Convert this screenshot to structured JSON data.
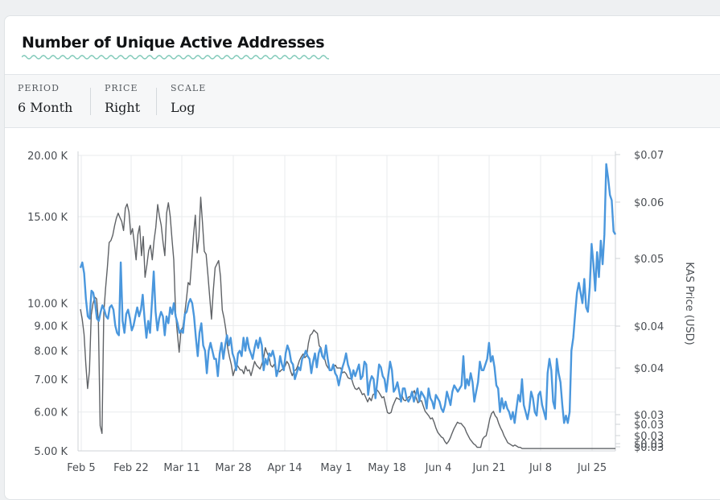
{
  "card": {
    "title": "Number of Unique Active Addresses"
  },
  "controls": [
    {
      "label": "PERIOD",
      "value": "6 Month"
    },
    {
      "label": "PRICE",
      "value": "Right"
    },
    {
      "label": "SCALE",
      "value": "Log"
    }
  ],
  "colors": {
    "addresses": "#4a97dd",
    "price": "#5f6266",
    "grid": "#e9ebed"
  },
  "chart_data": {
    "type": "line",
    "x_ticks": [
      "Feb 5",
      "Feb 22",
      "Mar 11",
      "Mar 28",
      "Apr 14",
      "May 1",
      "May 18",
      "Jun 4",
      "Jun 21",
      "Jul 8",
      "Jul 25"
    ],
    "y_left": {
      "scale": "log",
      "ticks": [
        5000,
        6000,
        7000,
        8000,
        9000,
        10000,
        15000,
        20000
      ],
      "tick_labels": [
        "5.00 K",
        "6.00 K",
        "7.00 K",
        "8.00 K",
        "9.00 K",
        "10.00 K",
        "15.00 K",
        "20.00 K"
      ],
      "ylim": [
        5000,
        20000
      ]
    },
    "y_right": {
      "label": "KAS Price (USD)",
      "tick_labels": [
        "$0.07",
        "$0.06",
        "$0.05",
        "$0.04",
        "$0.04",
        "$0.03",
        "$0.03",
        "$0.03",
        "$0.03",
        "$0.03"
      ]
    },
    "series": [
      {
        "key": "addresses",
        "axis": "left",
        "values": [
          11800,
          12100,
          11500,
          10200,
          9400,
          9300,
          10600,
          10500,
          10000,
          9300,
          9200,
          9600,
          9900,
          9700,
          9400,
          9300,
          9800,
          9900,
          9700,
          9000,
          8700,
          8600,
          12100,
          9200,
          8700,
          9500,
          9700,
          9300,
          8800,
          9000,
          9400,
          9800,
          9400,
          9700,
          10400,
          9300,
          8500,
          9200,
          8700,
          10000,
          11600,
          9600,
          8800,
          9300,
          9600,
          9400,
          8600,
          9400,
          9100,
          9800,
          9500,
          10000,
          9400,
          9100,
          8700,
          8800,
          8700,
          9500,
          9600,
          10000,
          10200,
          10000,
          9400,
          8500,
          7800,
          8700,
          9100,
          8200,
          8000,
          7200,
          8000,
          8300,
          8000,
          7700,
          7700,
          7100,
          7900,
          8300,
          7700,
          8200,
          8600,
          8200,
          8500,
          7900,
          7700,
          7300,
          7900,
          8000,
          7800,
          8500,
          8000,
          8500,
          8100,
          7900,
          7700,
          8100,
          8400,
          8100,
          8500,
          8200,
          7300,
          7700,
          7500,
          7900,
          7800,
          8000,
          7700,
          7100,
          7300,
          7800,
          7500,
          7300,
          7900,
          8200,
          8000,
          7600,
          7500,
          7000,
          7200,
          7400,
          7300,
          7700,
          7800,
          8000,
          7800,
          7700,
          7200,
          7600,
          7900,
          7400,
          7900,
          8100,
          7800,
          7700,
          8200,
          7700,
          7300,
          7300,
          7500,
          7200,
          7100,
          6800,
          7100,
          7400,
          7600,
          7900,
          7500,
          7300,
          7000,
          7300,
          7100,
          7300,
          7500,
          7000,
          7100,
          7600,
          7500,
          6500,
          6900,
          7100,
          7000,
          6400,
          6900,
          7500,
          7400,
          7100,
          7000,
          6600,
          7100,
          7600,
          7300,
          6600,
          6700,
          6900,
          6600,
          6300,
          6700,
          6700,
          6400,
          6300,
          6400,
          6600,
          6300,
          6500,
          6700,
          6300,
          6600,
          6500,
          6400,
          6100,
          6700,
          6400,
          6300,
          6100,
          6500,
          6400,
          6300,
          6100,
          6000,
          6200,
          6600,
          6400,
          6200,
          6600,
          6800,
          6700,
          6600,
          6700,
          6800,
          7800,
          6700,
          7000,
          6800,
          7200,
          6900,
          6300,
          6600,
          6900,
          7600,
          7300,
          7300,
          7500,
          7700,
          8300,
          7600,
          7800,
          7400,
          6800,
          6700,
          6000,
          6400,
          6100,
          6300,
          6100,
          6000,
          5800,
          6000,
          5700,
          6100,
          6500,
          6300,
          7000,
          6200,
          6000,
          5800,
          6100,
          6600,
          6400,
          6000,
          5900,
          6500,
          6600,
          6200,
          6000,
          5800,
          7200,
          7700,
          7300,
          6300,
          6100,
          7700,
          7200,
          6900,
          6200,
          5700,
          5900,
          5700,
          6000,
          8000,
          8500,
          9500,
          10500,
          11000,
          10500,
          10000,
          11200,
          9800,
          9600,
          10800,
          13200,
          12000,
          10600,
          12700,
          11300,
          13400,
          12000,
          13800,
          19200,
          18000,
          16600,
          16200,
          14000,
          13800
        ],
        "price_note": "none"
      },
      {
        "key": "price",
        "axis": "right",
        "values": [
          0.0455,
          0.0443,
          0.0425,
          0.0392,
          0.0367,
          0.0385,
          0.0448,
          0.0462,
          0.047,
          0.0468,
          0.044,
          0.0332,
          0.0325,
          0.045,
          0.0481,
          0.051,
          0.0545,
          0.0548,
          0.0556,
          0.057,
          0.0582,
          0.059,
          0.0583,
          0.0577,
          0.0563,
          0.0598,
          0.0605,
          0.0592,
          0.0557,
          0.0566,
          0.0545,
          0.052,
          0.0557,
          0.057,
          0.0526,
          0.0554,
          0.0496,
          0.0513,
          0.0533,
          0.0541,
          0.052,
          0.0548,
          0.0568,
          0.0604,
          0.0585,
          0.0571,
          0.0545,
          0.0526,
          0.059,
          0.0607,
          0.0585,
          0.055,
          0.052,
          0.045,
          0.0426,
          0.0405,
          0.043,
          0.0433,
          0.0448,
          0.0467,
          0.0489,
          0.0486,
          0.052,
          0.0556,
          0.0587,
          0.053,
          0.0554,
          0.0616,
          0.0575,
          0.0532,
          0.0528,
          0.05,
          0.047,
          0.0443,
          0.0478,
          0.0509,
          0.0514,
          0.0519,
          0.0497,
          0.0454,
          0.0444,
          0.043,
          0.041,
          0.04,
          0.0392,
          0.038,
          0.0386,
          0.0392,
          0.0389,
          0.0386,
          0.0386,
          0.0382,
          0.039,
          0.0385,
          0.0386,
          0.038,
          0.0387,
          0.0395,
          0.0391,
          0.0389,
          0.0387,
          0.0392,
          0.0398,
          0.041,
          0.0404,
          0.04,
          0.0391,
          0.0389,
          0.0392,
          0.0384,
          0.0386,
          0.0384,
          0.0386,
          0.0387,
          0.039,
          0.0395,
          0.0392,
          0.0385,
          0.038,
          0.0385,
          0.0386,
          0.039,
          0.0396,
          0.04,
          0.0403,
          0.0399,
          0.0401,
          0.0415,
          0.0424,
          0.0426,
          0.043,
          0.0428,
          0.0426,
          0.0412,
          0.041,
          0.04,
          0.0398,
          0.0391,
          0.0388,
          0.0386,
          0.0386,
          0.0389,
          0.0391,
          0.0388,
          0.0388,
          0.0388,
          0.0383,
          0.0384,
          0.0382,
          0.0378,
          0.0377,
          0.0377,
          0.0371,
          0.0367,
          0.0366,
          0.0368,
          0.0365,
          0.0361,
          0.0362,
          0.0358,
          0.0354,
          0.0358,
          0.0355,
          0.0361,
          0.0362,
          0.0366,
          0.0364,
          0.0361,
          0.0358,
          0.0359,
          0.0351,
          0.0344,
          0.0343,
          0.0344,
          0.035,
          0.0354,
          0.0358,
          0.0357,
          0.0356,
          0.0361,
          0.0356,
          0.0355,
          0.0357,
          0.0359,
          0.0359,
          0.0362,
          0.0365,
          0.0358,
          0.0353,
          0.0355,
          0.0355,
          0.035,
          0.0345,
          0.0343,
          0.0341,
          0.0338,
          0.0339,
          0.0335,
          0.033,
          0.0326,
          0.0324,
          0.0322,
          0.0321,
          0.0318,
          0.0316,
          0.0318,
          0.0321,
          0.0325,
          0.0329,
          0.0332,
          0.0335,
          0.0334,
          0.0334,
          0.0332,
          0.033,
          0.0326,
          0.0323,
          0.032,
          0.0318,
          0.0316,
          0.0315,
          0.0313,
          0.0313,
          0.0313,
          0.032,
          0.0322,
          0.0323,
          0.033,
          0.0338,
          0.0343,
          0.0345,
          0.0341,
          0.0339,
          0.0334,
          0.033,
          0.0327,
          0.0323,
          0.032,
          0.0317,
          0.0316,
          0.0315,
          0.0314,
          0.0315,
          0.0314,
          0.0313,
          0.0313,
          0.0312,
          0.0312,
          0.0312,
          0.0312,
          0.0312,
          0.0312,
          0.0312,
          0.0312,
          0.0312,
          0.0312,
          0.0312,
          0.0312,
          0.0312,
          0.0312,
          0.0312,
          0.0312,
          0.0312,
          0.0312,
          0.0312,
          0.0312,
          0.0312,
          0.0312,
          0.0312,
          0.0312,
          0.0312,
          0.0312,
          0.0312,
          0.0312,
          0.0312,
          0.0312,
          0.0312,
          0.0312,
          0.0312,
          0.0312,
          0.0312,
          0.0312,
          0.0312,
          0.0312,
          0.0312,
          0.0312,
          0.0312,
          0.0312,
          0.0312,
          0.0312,
          0.0312,
          0.0312,
          0.0312,
          0.0312,
          0.0312,
          0.0312,
          0.0312,
          0.0312,
          0.0312
        ]
      }
    ],
    "grid": true,
    "legend": "none"
  }
}
